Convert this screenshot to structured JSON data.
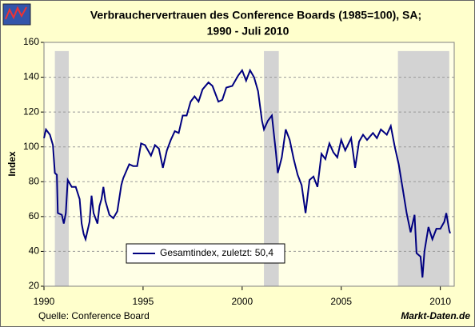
{
  "chart_data": {
    "type": "line",
    "title": "Verbrauchervertrauen des Conference Boards (1985=100), SA;",
    "subtitle": "1990 -  Juli 2010",
    "ylabel": "Index",
    "source": "Quelle: Conference Board",
    "brand": "Markt-Daten.de",
    "xlim": [
      1990,
      2010.7
    ],
    "xticks": [
      1990,
      1995,
      2000,
      2005,
      2010
    ],
    "ylim": [
      20,
      160
    ],
    "yticks": [
      20,
      40,
      60,
      80,
      100,
      120,
      140,
      160
    ],
    "grid": true,
    "shaded_regions": [
      [
        1990.55,
        1991.25
      ],
      [
        2001.1,
        2001.85
      ],
      [
        2007.86,
        2010.45
      ]
    ],
    "shaded_top": 155,
    "shaded_color": "#d3d3d3",
    "x": [
      1990.0,
      1990.1,
      1990.3,
      1990.45,
      1990.55,
      1990.65,
      1990.7,
      1990.9,
      1991.0,
      1991.1,
      1991.2,
      1991.4,
      1991.6,
      1991.8,
      1991.9,
      1992.0,
      1992.1,
      1992.3,
      1992.4,
      1992.5,
      1992.7,
      1992.8,
      1992.9,
      1993.0,
      1993.1,
      1993.3,
      1993.5,
      1993.7,
      1993.9,
      1994.0,
      1994.3,
      1994.5,
      1994.7,
      1994.9,
      1995.1,
      1995.4,
      1995.6,
      1995.8,
      1996.0,
      1996.2,
      1996.4,
      1996.6,
      1996.8,
      1997.0,
      1997.2,
      1997.4,
      1997.6,
      1997.8,
      1998.0,
      1998.3,
      1998.5,
      1998.8,
      1999.0,
      1999.2,
      1999.5,
      1999.8,
      2000.0,
      2000.2,
      2000.4,
      2000.6,
      2000.8,
      2001.0,
      2001.1,
      2001.3,
      2001.5,
      2001.7,
      2001.8,
      2002.0,
      2002.2,
      2002.4,
      2002.6,
      2002.8,
      2003.0,
      2003.2,
      2003.4,
      2003.6,
      2003.8,
      2004.0,
      2004.2,
      2004.4,
      2004.6,
      2004.8,
      2005.0,
      2005.2,
      2005.5,
      2005.7,
      2005.9,
      2006.1,
      2006.3,
      2006.6,
      2006.8,
      2007.0,
      2007.3,
      2007.5,
      2007.7,
      2007.9,
      2008.1,
      2008.3,
      2008.5,
      2008.7,
      2008.8,
      2009.0,
      2009.1,
      2009.2,
      2009.4,
      2009.6,
      2009.8,
      2010.0,
      2010.2,
      2010.3,
      2010.45,
      2010.5
    ],
    "series": [
      {
        "name": "Gesamtindex, zuletzt: 50,4",
        "color": "#000080",
        "values": [
          105,
          110,
          107,
          101,
          85,
          84,
          62,
          61,
          56,
          62,
          81,
          77,
          77,
          70,
          56,
          50,
          47,
          57,
          72,
          62,
          56,
          66,
          70,
          77,
          69,
          61,
          59,
          63,
          78,
          82,
          90,
          89,
          89,
          102,
          101,
          95,
          101,
          99,
          88,
          98,
          104,
          109,
          108,
          118,
          118,
          126,
          129,
          126,
          133,
          137,
          135,
          126,
          127,
          134,
          135,
          141,
          144,
          138,
          144,
          140,
          132,
          115,
          110,
          115,
          118,
          97,
          85,
          94,
          110,
          104,
          93,
          84,
          78,
          62,
          81,
          83,
          77,
          96,
          93,
          102,
          97,
          94,
          104,
          98,
          105,
          88,
          103,
          107,
          104,
          108,
          105,
          110,
          107,
          112,
          100,
          90,
          76,
          62,
          51,
          61,
          39,
          37,
          25,
          40,
          54,
          47,
          53,
          53,
          57,
          62,
          52,
          50.4
        ]
      }
    ]
  }
}
